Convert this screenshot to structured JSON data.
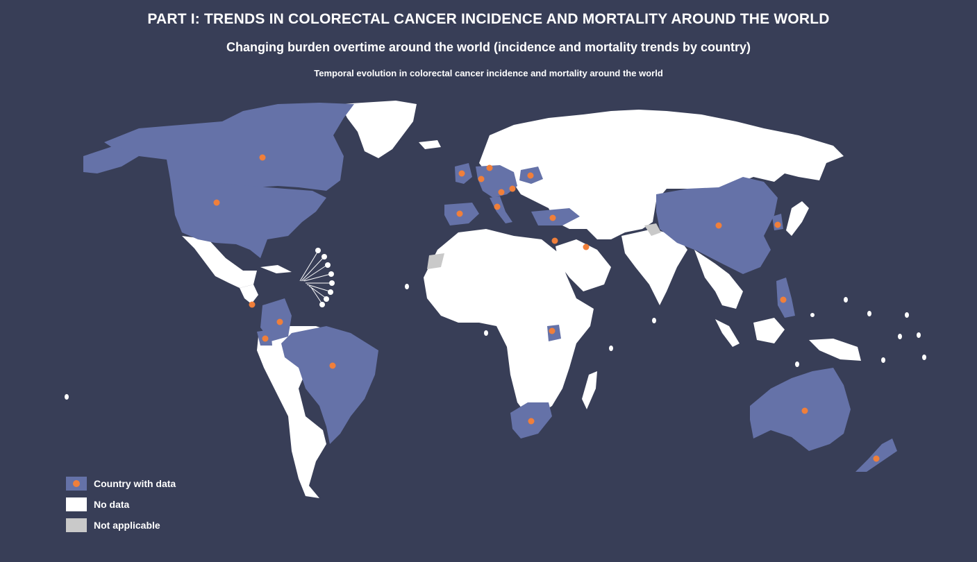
{
  "header": {
    "title": "PART I: TRENDS IN COLORECTAL CANCER INCIDENCE AND MORTALITY AROUND THE WORLD",
    "subtitle": "Changing burden overtime around the world (incidence and mortality trends by country)",
    "caption": "Temporal evolution in colorectal cancer incidence and mortality around the world"
  },
  "legend": {
    "items": [
      {
        "label": "Country with data",
        "fill": "#6572a8",
        "marker": "#f07f3a"
      },
      {
        "label": "No data",
        "fill": "#ffffff"
      },
      {
        "label": "Not applicable",
        "fill": "#c9c9c9"
      }
    ]
  },
  "colors": {
    "background": "#383e57",
    "with_data": "#6572a8",
    "no_data": "#ffffff",
    "not_applicable": "#c9c9c9",
    "marker": "#f07f3a"
  }
}
